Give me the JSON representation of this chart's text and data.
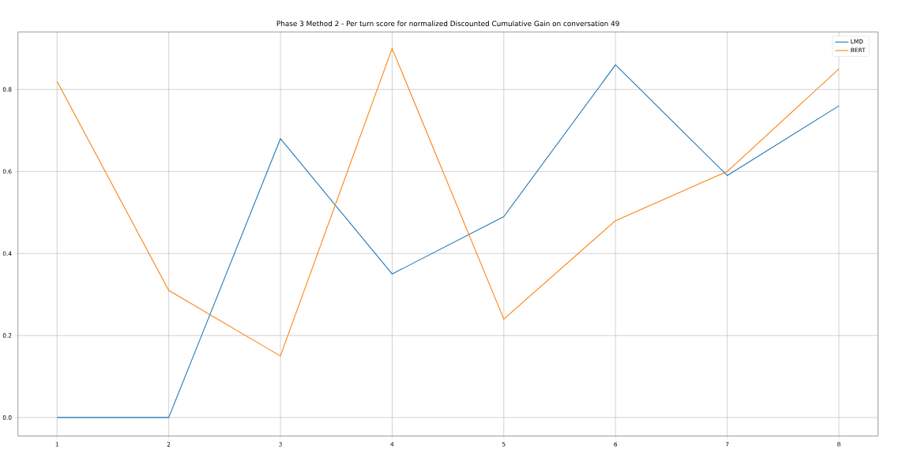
{
  "chart_data": {
    "type": "line",
    "title": "Phase 3 Method 2 - Per turn score for normalized Discounted Cumulative Gain on conversation 49",
    "x": [
      1,
      2,
      3,
      4,
      5,
      6,
      7,
      8
    ],
    "series": [
      {
        "name": "LMD",
        "color": "#1f77b4",
        "values": [
          0.0,
          0.0,
          0.68,
          0.35,
          0.49,
          0.86,
          0.59,
          0.76
        ]
      },
      {
        "name": "BERT",
        "color": "#ff7f0e",
        "values": [
          0.82,
          0.31,
          0.15,
          0.9,
          0.24,
          0.48,
          0.6,
          0.85
        ]
      }
    ],
    "xlim": [
      0.65,
      8.35
    ],
    "ylim": [
      -0.045,
      0.94
    ],
    "xticks": [
      1,
      2,
      3,
      4,
      5,
      6,
      7,
      8
    ],
    "yticks": [
      {
        "value": 0,
        "label": "0.0"
      },
      {
        "value": 0.2,
        "label": "0.2"
      },
      {
        "value": 0.4,
        "label": "0.4"
      },
      {
        "value": 0.6,
        "label": "0.6"
      },
      {
        "value": 0.8,
        "label": "0.8"
      }
    ],
    "grid": true,
    "legend": "top right",
    "marker": "none",
    "line_style": "solid"
  }
}
